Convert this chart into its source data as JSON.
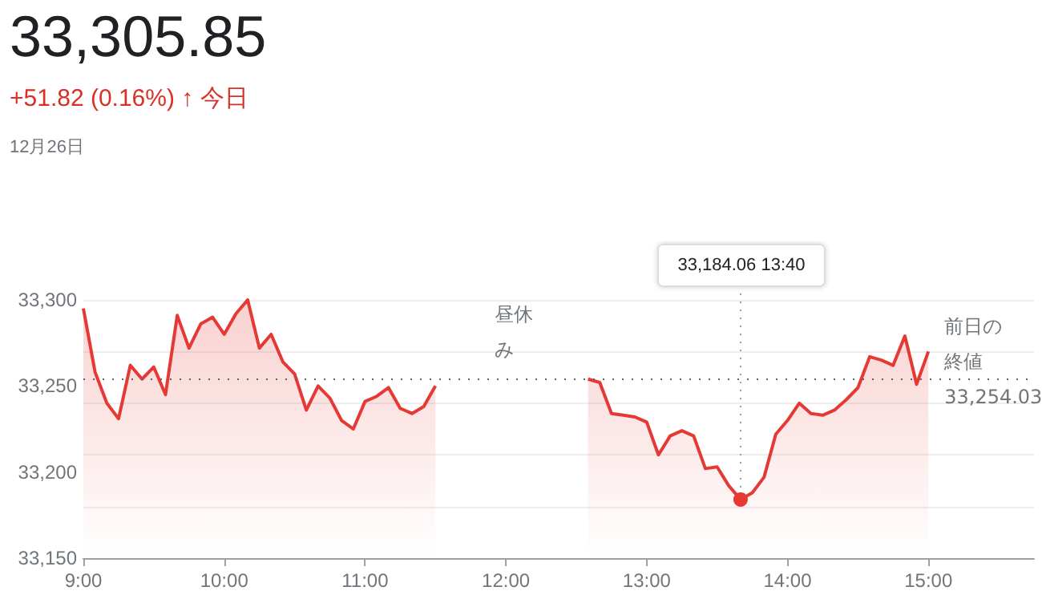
{
  "chart_data": {
    "type": "area",
    "title": "33,305.85",
    "subtitle": "+51.82 (0.16%) ↑ 今日",
    "annotations": [
      "12月26日",
      "昼休み",
      {
        "text": "33,184.06 13:40",
        "x": 13.6667,
        "y": 33184.06
      }
    ],
    "x": [
      9,
      9.0833,
      9.1667,
      9.25,
      9.3333,
      9.4167,
      9.5,
      9.5833,
      9.6667,
      9.75,
      9.8333,
      9.9167,
      10,
      10.0833,
      10.1667,
      10.25,
      10.3333,
      10.4167,
      10.5,
      10.5833,
      10.6667,
      10.75,
      10.8333,
      10.9167,
      11,
      11.0833,
      11.1667,
      11.25,
      11.3333,
      11.4167,
      11.5,
      12,
      12.5833,
      12.6667,
      12.75,
      12.8333,
      12.9167,
      13,
      13.0833,
      13.1667,
      13.25,
      13.3333,
      13.4167,
      13.5,
      13.5833,
      13.6667,
      13.75,
      13.8333,
      13.9167,
      14,
      14.0833,
      14.1667,
      14.25,
      14.3333,
      14.4167,
      14.5,
      14.5833,
      14.6667,
      14.75,
      14.8333,
      14.9167,
      15
    ],
    "series": [
      {
        "color": "#e53935",
        "values": [
          33295,
          33258,
          33240,
          33231,
          33262,
          33254,
          33261,
          33245,
          33291,
          33272,
          33286,
          33290,
          33280,
          33292,
          33300,
          33272,
          33280,
          33264,
          33257,
          33236,
          33250,
          33243,
          33230,
          33225,
          33241,
          33244,
          33249,
          33237,
          33234,
          33238,
          33250,
          null,
          33254,
          33252,
          33234,
          33233,
          33232,
          33229,
          33210,
          33221,
          33224,
          33221,
          33202,
          33203,
          33192,
          33184.06,
          33188,
          33197,
          33222,
          33230,
          33240,
          33234,
          33233,
          33236,
          33242,
          33249,
          33267,
          33265,
          33262,
          33279,
          33251,
          33270
        ]
      }
    ],
    "xlim": [
      9,
      15.75
    ],
    "xticks": [
      {
        "value": 9,
        "label": "9:00"
      },
      {
        "value": 10,
        "label": "10:00"
      },
      {
        "value": 11,
        "label": "11:00"
      },
      {
        "value": 12,
        "label": "12:00"
      },
      {
        "value": 13,
        "label": "13:00"
      },
      {
        "value": 14,
        "label": "14:00"
      },
      {
        "value": 15,
        "label": "15:00"
      }
    ],
    "ylim": [
      33150,
      33300
    ],
    "yticks": [
      {
        "value": 33150,
        "label": "33,150"
      },
      {
        "value": 33200,
        "label": "33,200"
      },
      {
        "value": 33250,
        "label": "33,250"
      },
      {
        "value": 33300,
        "label": "33,300"
      }
    ],
    "ref_lines": [
      {
        "axis": "y",
        "value": 33254.03,
        "label": "前日の終値 33,254.03",
        "line_style": "dotted"
      }
    ],
    "grid": "y",
    "marker": "none",
    "line_style": "solid"
  }
}
